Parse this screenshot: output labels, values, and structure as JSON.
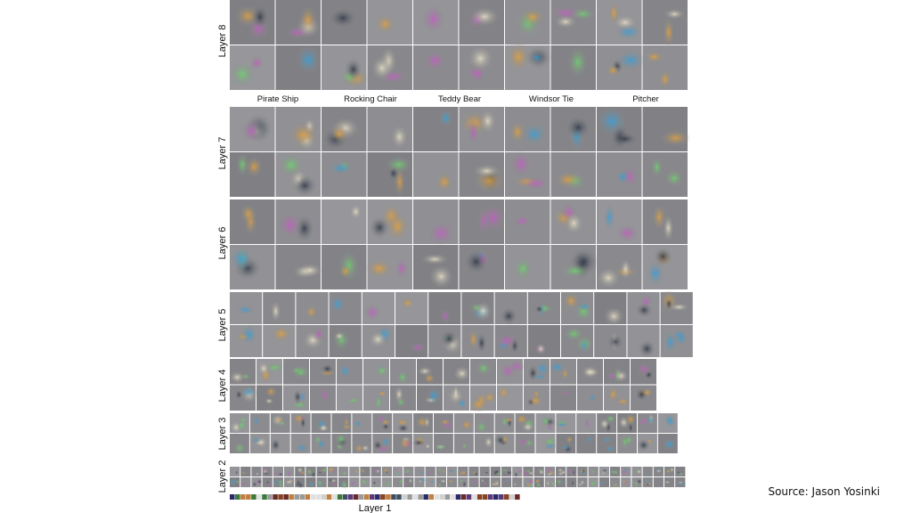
{
  "layers": [
    {
      "label": "Layer 8"
    },
    {
      "label": "Layer 7"
    },
    {
      "label": "Layer 6"
    },
    {
      "label": "Layer 5"
    },
    {
      "label": "Layer 4"
    },
    {
      "label": "Layer 3"
    },
    {
      "label": "Layer 2"
    },
    {
      "label": "Layer 1"
    }
  ],
  "classes": [
    "Pirate Ship",
    "Rocking Chair",
    "Teddy Bear",
    "Windsor Tie",
    "Pitcher"
  ],
  "source": "Source: Jason Yosinki"
}
